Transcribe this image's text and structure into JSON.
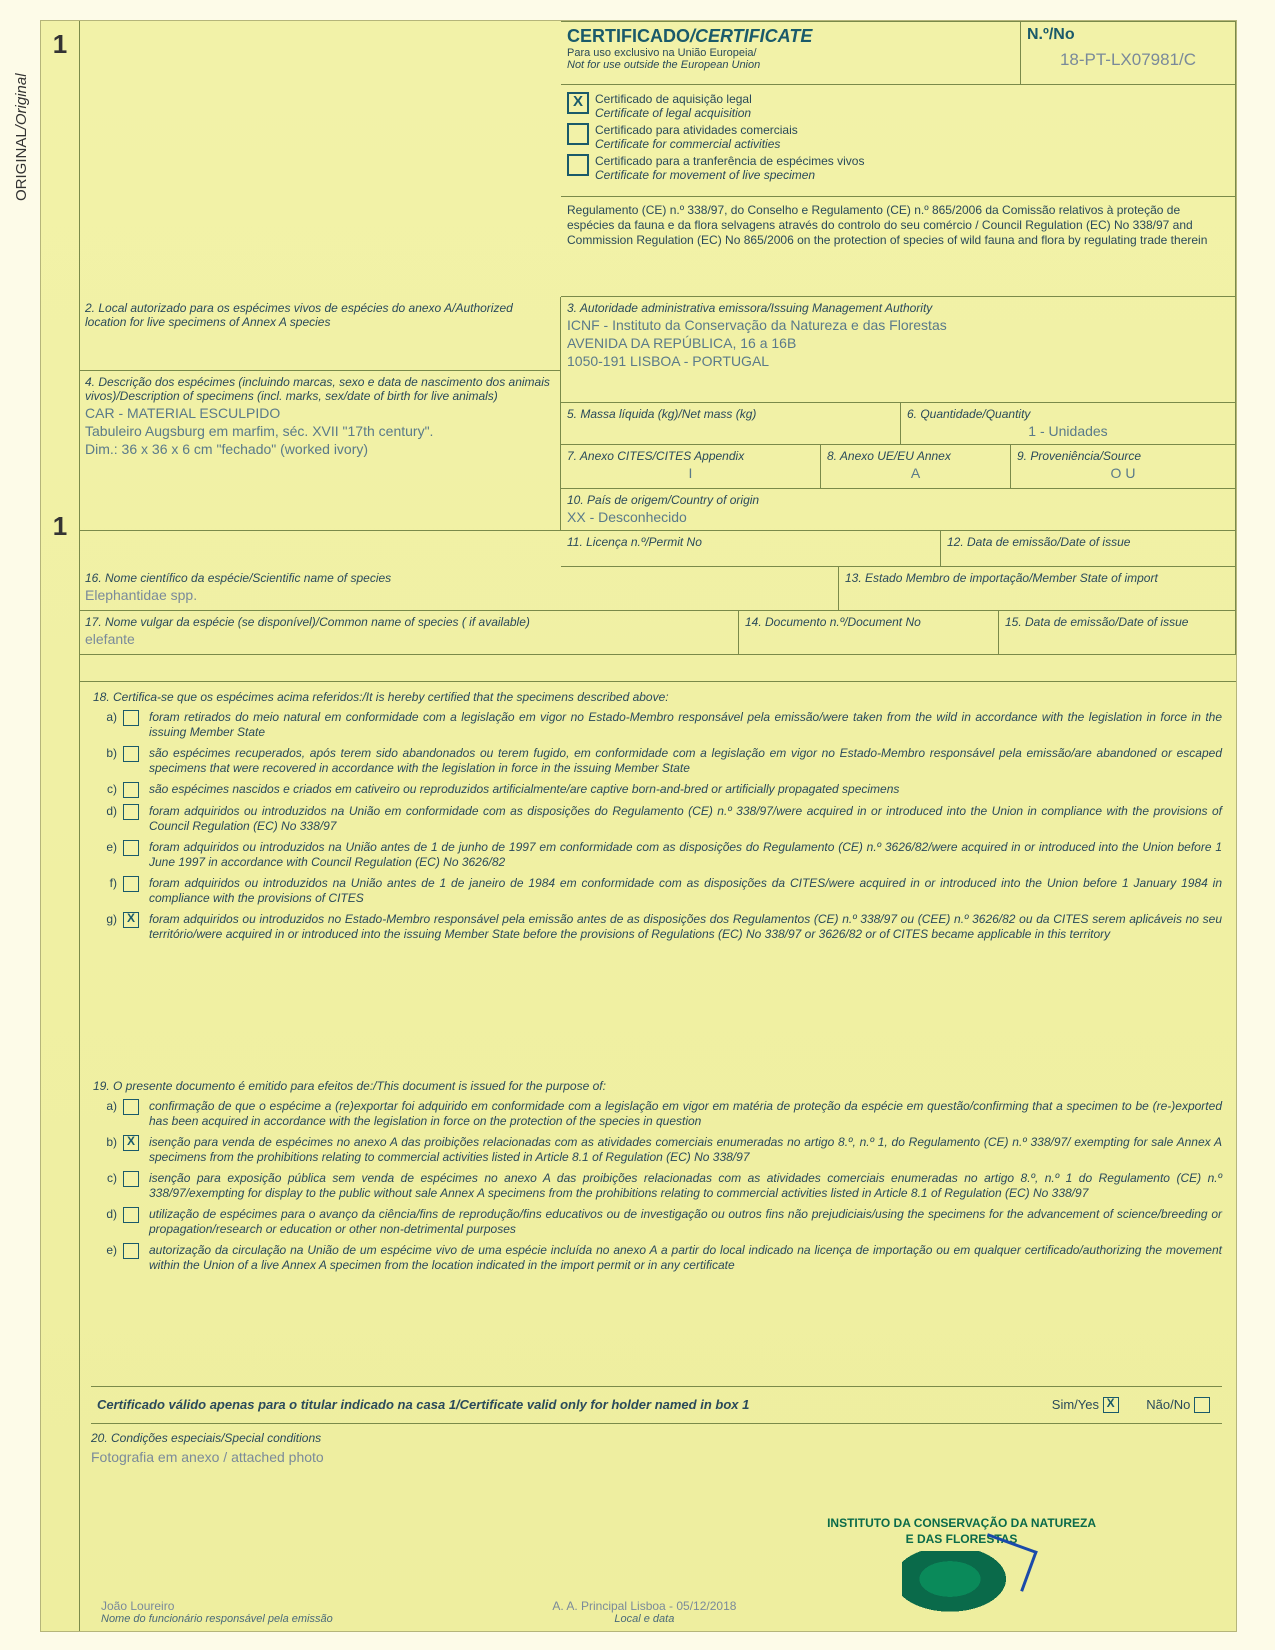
{
  "sideLabel": {
    "normal": "ORIGINAL",
    "italic": "/Original"
  },
  "bigNumbers": [
    "1",
    "1"
  ],
  "header": {
    "title": "CERTIFICADO",
    "titleItalic": "/CERTIFICATE",
    "sub1": "Para uso exclusivo na União Europeia/",
    "sub2": "Not for use outside the European Union",
    "noLabel": "N.º/No",
    "noValue": "18-PT-LX07981/C"
  },
  "certTypes": [
    {
      "checked": true,
      "pt": "Certificado de aquisição legal",
      "en": "Certificate of legal acquisition"
    },
    {
      "checked": false,
      "pt": "Certificado para atividades comerciais",
      "en": "Certificate for commercial activities"
    },
    {
      "checked": false,
      "pt": "Certificado para a tranferência de espécimes vivos",
      "en": "Certificate for movement of live specimen"
    }
  ],
  "regulation": "Regulamento (CE) n.º 338/97, do Conselho e Regulamento (CE) n.º 865/2006 da Comissão relativos à proteção de espécies da fauna e da flora selvagens através do controlo do seu comércio / Council Regulation (EC) No 338/97 and Commission Regulation (EC) No 865/2006 on the protection of species of wild fauna and flora by regulating trade therein",
  "box2": {
    "label": "2. Local autorizado para os espécimes vivos de espécies do anexo A/Authorized location for live specimens of Annex A species"
  },
  "box3": {
    "label": "3. Autoridade administrativa emissora/Issuing Management Authority",
    "l1": "ICNF - Instituto da Conservação da Natureza e das Florestas",
    "l2": "AVENIDA DA REPÚBLICA, 16 a 16B",
    "l3": "1050-191 LISBOA - PORTUGAL"
  },
  "box4": {
    "label": "4. Descrição dos espécimes (incluindo marcas, sexo e data de nascimento dos animais vivos)/Description of specimens (incl. marks, sex/date of birth for live animals)",
    "v1": "CAR - MATERIAL ESCULPIDO",
    "v2": "Tabuleiro Augsburg em marfim, séc. XVII \"17th century\".",
    "v3": "Dim.: 36 x 36 x 6 cm \"fechado\" (worked ivory)"
  },
  "box5": {
    "label": "5. Massa líquida (kg)/Net mass (kg)"
  },
  "box6": {
    "label": "6. Quantidade/Quantity",
    "value": "1 - Unidades"
  },
  "box7": {
    "label": "7. Anexo CITES/CITES Appendix",
    "value": "I"
  },
  "box8": {
    "label": "8. Anexo UE/EU Annex",
    "value": "A"
  },
  "box9": {
    "label": "9. Proveniência/Source",
    "value": "O U"
  },
  "box10": {
    "label": "10. País de origem/Country of origin",
    "value": "XX - Desconhecido"
  },
  "box11": {
    "label": "11. Licença n.º/Permit No"
  },
  "box12": {
    "label": "12. Data de emissão/Date of issue"
  },
  "box13": {
    "label": "13. Estado Membro de importação/Member State of import"
  },
  "box14": {
    "label": "14. Documento n.º/Document No"
  },
  "box15": {
    "label": "15. Data de emissão/Date of issue"
  },
  "box16": {
    "label": "16. Nome científico da espécie/Scientific name of species",
    "value": "Elephantidae spp."
  },
  "box17": {
    "label": "17. Nome vulgar da espécie (se disponível)/Common name of species ( if available)",
    "value": "elefante"
  },
  "s18": {
    "intro": "18. Certifica-se que os espécimes acima referidos:/It is hereby certified that the specimens described above:",
    "items": [
      {
        "l": "a)",
        "c": false,
        "t": "foram retirados do meio natural em conformidade com a legislação em vigor no Estado-Membro responsável pela emissão/were taken from the wild in accordance with the legislation in force in the issuing Member State"
      },
      {
        "l": "b)",
        "c": false,
        "t": "são espécimes recuperados, após terem sido abandonados ou terem fugido, em conformidade com a legislação em vigor no Estado-Membro responsável pela emissão/are abandoned or escaped specimens that were recovered in accordance with the legislation in force in the issuing Member State"
      },
      {
        "l": "c)",
        "c": false,
        "t": "são espécimes nascidos e criados em cativeiro ou reproduzidos artificialmente/are captive born-and-bred or artificially propagated specimens"
      },
      {
        "l": "d)",
        "c": false,
        "t": "foram adquiridos ou introduzidos na União em conformidade com as disposições do Regulamento (CE) n.º 338/97/were acquired in or introduced into the Union in compliance with the provisions of Council Regulation (EC) No 338/97"
      },
      {
        "l": "e)",
        "c": false,
        "t": "foram adquiridos ou introduzidos na União antes de 1 de junho de 1997 em conformidade com as disposições do Regulamento (CE) n.º 3626/82/were acquired in or introduced into the Union before 1 June 1997 in accordance with Council Regulation (EC) No 3626/82"
      },
      {
        "l": "f)",
        "c": false,
        "t": "foram adquiridos ou introduzidos na União antes de 1 de janeiro de 1984 em conformidade com as disposições da CITES/were acquired in or introduced into the Union before 1 January 1984 in compliance with the provisions of CITES"
      },
      {
        "l": "g)",
        "c": true,
        "t": "foram adquiridos ou introduzidos no Estado-Membro responsável pela emissão antes de as disposições dos Regulamentos (CE) n.º 338/97 ou (CEE) n.º 3626/82 ou da CITES serem aplicáveis no seu território/were acquired in or introduced into the issuing Member State before the provisions of Regulations (EC) No 338/97 or 3626/82 or of CITES became applicable in this territory"
      }
    ]
  },
  "s19": {
    "intro": "19. O presente documento é emitido para efeitos de:/This document is issued for the purpose of:",
    "items": [
      {
        "l": "a)",
        "c": false,
        "t": "confirmação de que o espécime a (re)exportar foi adquirido em conformidade com a legislação em vigor em matéria de proteção da espécie em questão/confirming that a specimen to be (re-)exported has been acquired in accordance with the legislation in force on the protection of the species in question"
      },
      {
        "l": "b)",
        "c": true,
        "t": "isenção para venda de espécimes no anexo A das proibições relacionadas com as atividades comerciais enumeradas no artigo 8.º, n.º 1, do Regulamento (CE) n.º 338/97/ exempting for sale Annex A specimens from the prohibitions relating to commercial activities listed in Article 8.1 of Regulation (EC) No 338/97"
      },
      {
        "l": "c)",
        "c": false,
        "t": "isenção para exposição pública sem venda de espécimes no anexo A das proibições relacionadas com as atividades comerciais enumeradas no artigo 8.º, n.º 1 do Regulamento (CE) n.º 338/97/exempting for display to the public without sale Annex A specimens from the prohibitions relating to commercial activities listed in Article 8.1 of Regulation (EC) No 338/97"
      },
      {
        "l": "d)",
        "c": false,
        "t": "utilização de espécimes para o avanço da ciência/fins de reprodução/fins educativos ou de investigação ou outros fins não prejudiciais/using the specimens for the advancement of science/breeding or propagation/research or education or other non-detrimental purposes"
      },
      {
        "l": "e)",
        "c": false,
        "t": "autorização da circulação na União de um espécime vivo de uma espécie incluída no anexo A a partir do local indicado na licença de importação ou em qualquer certificado/authorizing the movement within the Union of a live Annex A specimen from the location indicated in the import permit or in any certificate"
      }
    ]
  },
  "validLine": {
    "text": "Certificado válido apenas para o titular indicado na casa 1/Certificate valid only for holder named in box 1",
    "yes": "Sim/Yes",
    "no": "Não/No",
    "yesChecked": true,
    "noChecked": false
  },
  "box20": {
    "label": "20. Condições especiais/Special conditions",
    "value": "Fotografia em anexo / attached photo"
  },
  "footer": {
    "name": "João Loureiro",
    "nameLabel": "Nome do funcionário responsável pela emissão",
    "place": "A. A. Principal Lisboa - 05/12/2018",
    "placeLabel": "Local e data",
    "stamp1": "INSTITUTO DA CONSERVAÇÃO DA NATUREZA",
    "stamp2": "E DAS FLORESTAS"
  }
}
